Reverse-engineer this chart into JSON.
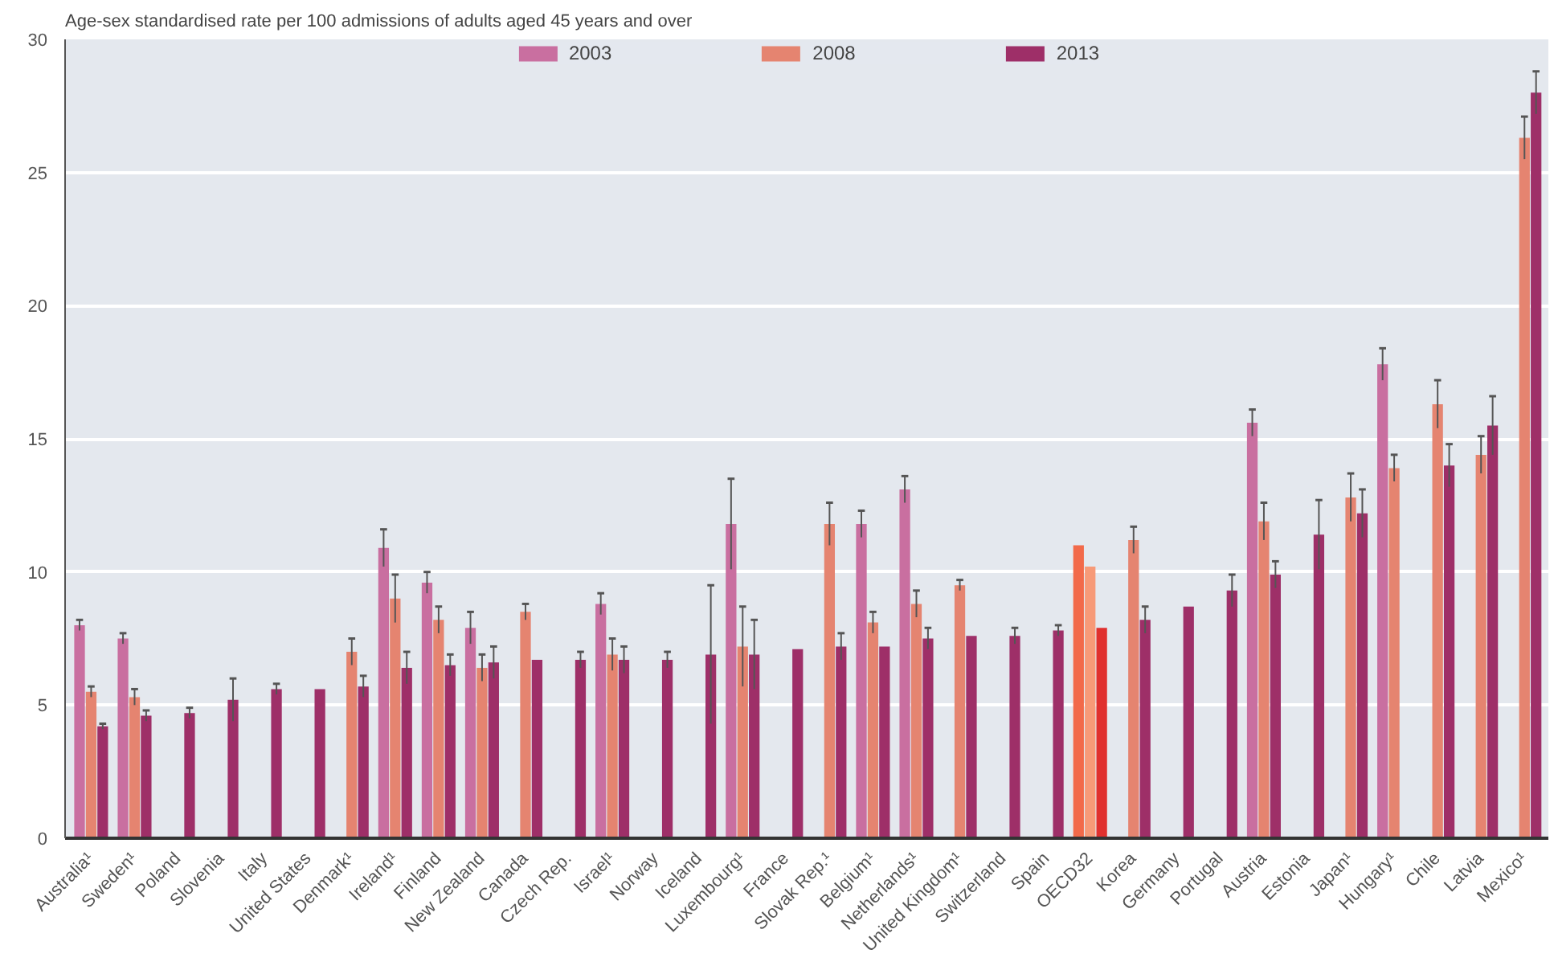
{
  "chart_data": {
    "type": "bar",
    "ylabel": "Age-sex standardised rate per 100 admissions of adults aged 45 years and over",
    "categories": [
      "Australia¹",
      "Sweden¹",
      "Poland",
      "Slovenia",
      "Italy",
      "United States",
      "Denmark¹",
      "Ireland¹",
      "Finland",
      "New Zealand",
      "Canada",
      "Czech Rep.",
      "Israel¹",
      "Norway",
      "Iceland",
      "Luxembourg¹",
      "France",
      "Slovak Rep.¹",
      "Belgium¹",
      "Netherlands¹",
      "United Kingdom¹",
      "Switzerland",
      "Spain",
      "OECD32",
      "Korea",
      "Germany",
      "Portugal",
      "Austria",
      "Estonia",
      "Japan¹",
      "Hungary¹",
      "Chile",
      "Latvia",
      "Mexico¹"
    ],
    "series": [
      {
        "name": "2003",
        "color": "#c96fa0",
        "colors": [
          "#c96fa0",
          "#c96fa0",
          "#c96fa0",
          "#c96fa0",
          "#c96fa0",
          "#c96fa0",
          "#c96fa0",
          "#c96fa0",
          "#c96fa0",
          "#c96fa0",
          "#c96fa0",
          "#c96fa0",
          "#c96fa0",
          "#c96fa0",
          "#c96fa0",
          "#c96fa0",
          "#c96fa0",
          "#c96fa0",
          "#c96fa0",
          "#c96fa0",
          "#c96fa0",
          "#c96fa0",
          "#c96fa0",
          "#f26a4a",
          "#c96fa0",
          "#c96fa0",
          "#c96fa0",
          "#c96fa0",
          "#c96fa0",
          "#c96fa0",
          "#c96fa0",
          "#c96fa0",
          "#c96fa0",
          "#c96fa0"
        ],
        "values": [
          8.0,
          7.5,
          null,
          null,
          null,
          null,
          null,
          10.9,
          9.6,
          7.9,
          null,
          null,
          8.8,
          null,
          null,
          11.8,
          null,
          null,
          11.8,
          13.1,
          null,
          null,
          null,
          11.0,
          null,
          null,
          null,
          15.6,
          null,
          null,
          17.8,
          null,
          null,
          null
        ],
        "errors": [
          0.2,
          0.2,
          null,
          null,
          null,
          null,
          null,
          0.7,
          0.4,
          0.6,
          null,
          null,
          0.4,
          null,
          null,
          1.7,
          null,
          null,
          0.5,
          0.5,
          null,
          null,
          null,
          null,
          null,
          null,
          null,
          0.5,
          null,
          null,
          0.6,
          null,
          null,
          null
        ]
      },
      {
        "name": "2008",
        "color": "#e58470",
        "colors": [
          "#e58470",
          "#e58470",
          "#e58470",
          "#e58470",
          "#e58470",
          "#e58470",
          "#e58470",
          "#e58470",
          "#e58470",
          "#e58470",
          "#e58470",
          "#e58470",
          "#e58470",
          "#e58470",
          "#e58470",
          "#e58470",
          "#e58470",
          "#e58470",
          "#e58470",
          "#e58470",
          "#e58470",
          "#e58470",
          "#e58470",
          "#f79a78",
          "#e58470",
          "#e58470",
          "#e58470",
          "#e58470",
          "#e58470",
          "#e58470",
          "#e58470",
          "#e58470",
          "#e58470",
          "#e58470"
        ],
        "values": [
          5.5,
          5.3,
          null,
          null,
          null,
          null,
          7.0,
          9.0,
          8.2,
          6.4,
          8.5,
          null,
          6.9,
          null,
          null,
          7.2,
          null,
          11.8,
          8.1,
          8.8,
          9.5,
          null,
          null,
          10.2,
          11.2,
          null,
          null,
          11.9,
          null,
          12.8,
          13.9,
          16.3,
          14.4,
          26.3
        ],
        "errors": [
          0.2,
          0.3,
          null,
          null,
          null,
          null,
          0.5,
          0.9,
          0.5,
          0.5,
          0.3,
          null,
          0.6,
          null,
          null,
          1.5,
          null,
          0.8,
          0.4,
          0.5,
          0.2,
          null,
          null,
          null,
          0.5,
          null,
          null,
          0.7,
          null,
          0.9,
          0.5,
          0.9,
          0.7,
          0.8
        ]
      },
      {
        "name": "2013",
        "color": "#9e2f68",
        "colors": [
          "#9e2f68",
          "#9e2f68",
          "#9e2f68",
          "#9e2f68",
          "#9e2f68",
          "#9e2f68",
          "#9e2f68",
          "#9e2f68",
          "#9e2f68",
          "#9e2f68",
          "#9e2f68",
          "#9e2f68",
          "#9e2f68",
          "#9e2f68",
          "#9e2f68",
          "#9e2f68",
          "#9e2f68",
          "#9e2f68",
          "#9e2f68",
          "#9e2f68",
          "#9e2f68",
          "#9e2f68",
          "#9e2f68",
          "#e0302e",
          "#9e2f68",
          "#9e2f68",
          "#9e2f68",
          "#9e2f68",
          "#9e2f68",
          "#9e2f68",
          "#9e2f68",
          "#9e2f68",
          "#9e2f68",
          "#9e2f68"
        ],
        "values": [
          4.2,
          4.6,
          4.7,
          5.2,
          5.6,
          5.6,
          5.7,
          6.4,
          6.5,
          6.6,
          6.7,
          6.7,
          6.7,
          6.7,
          6.9,
          6.9,
          7.1,
          7.2,
          7.2,
          7.5,
          7.6,
          7.6,
          7.8,
          7.9,
          8.2,
          8.7,
          9.3,
          9.9,
          11.4,
          12.2,
          null,
          14.0,
          15.5,
          28.0
        ],
        "errors": [
          0.1,
          0.2,
          0.2,
          0.8,
          0.2,
          null,
          0.4,
          0.6,
          0.4,
          0.6,
          null,
          0.3,
          0.5,
          0.3,
          2.6,
          1.3,
          null,
          0.5,
          null,
          0.4,
          null,
          0.3,
          0.2,
          null,
          0.5,
          null,
          0.6,
          0.5,
          1.3,
          0.9,
          null,
          0.8,
          1.1,
          0.8
        ]
      }
    ],
    "ylim": [
      0,
      30
    ],
    "yticks": [
      0,
      5,
      10,
      15,
      20,
      25,
      30
    ],
    "grid": "y",
    "legend": "top"
  }
}
